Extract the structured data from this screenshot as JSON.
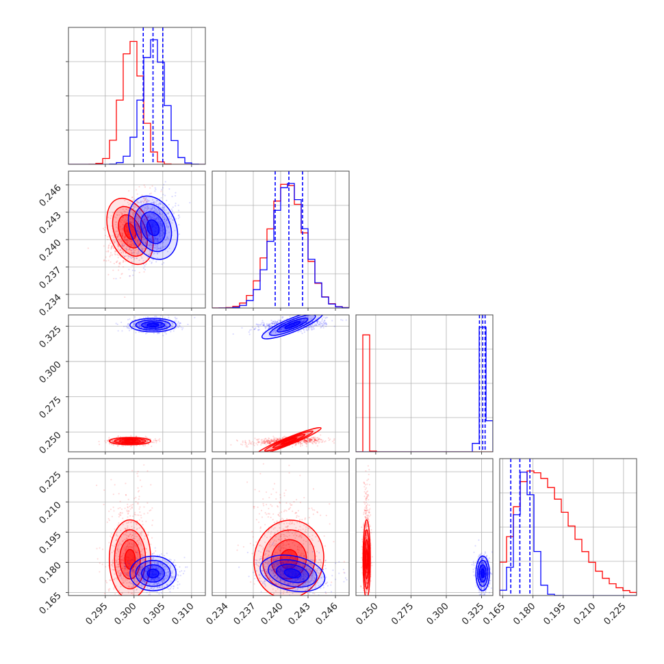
{
  "colors": {
    "red": "#ff0000",
    "blue": "#0000ff",
    "grid": "#b0b0b0",
    "frame": "#444444"
  },
  "chart_data": {
    "type": "corner",
    "grid": true,
    "parameters": [
      {
        "ticks": [
          0.295,
          0.3,
          0.305,
          0.31
        ],
        "tick_labels": [
          "0.295",
          "0.300",
          "0.305",
          "0.310"
        ],
        "range": [
          0.2886,
          0.3124
        ]
      },
      {
        "ticks": [
          0.234,
          0.237,
          0.24,
          0.243,
          0.246
        ],
        "tick_labels": [
          "0.234",
          "0.237",
          "0.240",
          "0.243",
          "0.246"
        ],
        "range": [
          0.2325,
          0.2475
        ]
      },
      {
        "ticks": [
          0.25,
          0.275,
          0.3,
          0.325
        ],
        "tick_labels": [
          "0.250",
          "0.275",
          "0.300",
          "0.325"
        ],
        "range": [
          0.236,
          0.333
        ]
      },
      {
        "ticks": [
          0.165,
          0.18,
          0.195,
          0.21,
          0.225
        ],
        "tick_labels": [
          "0.165",
          "0.180",
          "0.195",
          "0.210",
          "0.225"
        ],
        "range": [
          0.1635,
          0.2315
        ]
      }
    ],
    "series": [
      {
        "color": "red",
        "means": [
          0.2993,
          0.2409,
          0.2436,
          0.1815
        ],
        "sds": [
          0.0018,
          0.0019,
          0.0013,
          0.0085
        ],
        "hist_peaks": [
          0.2996,
          0.2407,
          0.2439,
          0.179
        ]
      },
      {
        "color": "blue",
        "means": [
          0.3033,
          0.2413,
          0.3258,
          0.1745
        ],
        "sds": [
          0.002,
          0.0018,
          0.0024,
          0.0043
        ],
        "hist_peaks": [
          0.3034,
          0.2409,
          0.3265,
          0.176
        ]
      }
    ],
    "quantile_lines_blue": [
      [
        0.3016,
        0.3033,
        0.305
      ],
      [
        0.2394,
        0.2409,
        0.2424
      ],
      [
        0.3235,
        0.3258,
        0.3275
      ],
      [
        0.169,
        0.1735,
        0.1785
      ]
    ]
  }
}
